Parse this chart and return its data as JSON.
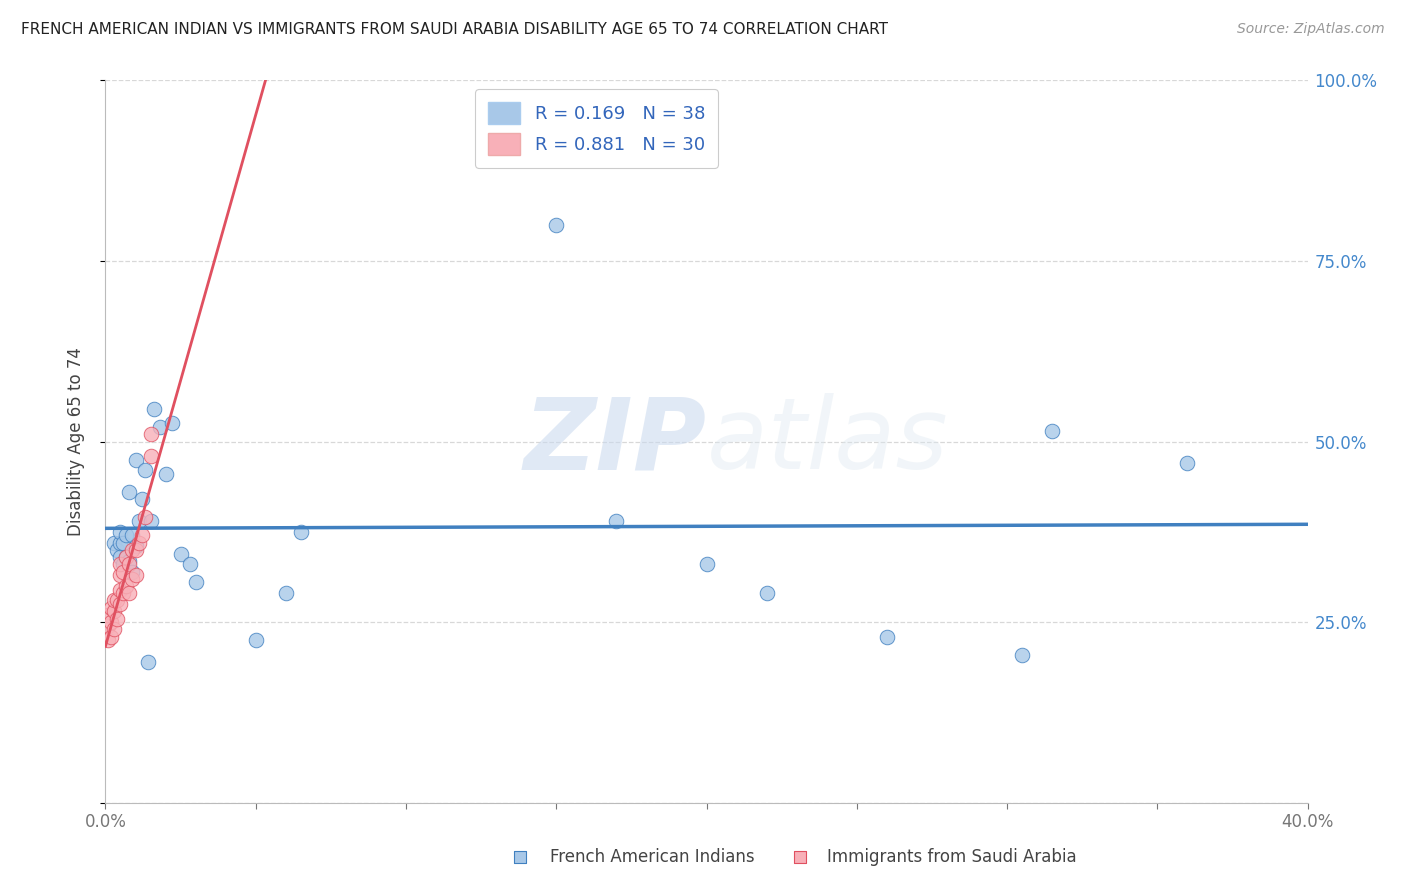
{
  "title": "FRENCH AMERICAN INDIAN VS IMMIGRANTS FROM SAUDI ARABIA DISABILITY AGE 65 TO 74 CORRELATION CHART",
  "source": "Source: ZipAtlas.com",
  "ylabel": "Disability Age 65 to 74",
  "xlim": [
    0.0,
    0.4
  ],
  "ylim": [
    0.0,
    1.0
  ],
  "blue_R": 0.169,
  "blue_N": 38,
  "pink_R": 0.881,
  "pink_N": 30,
  "blue_color": "#a8c8e8",
  "pink_color": "#f8b0b8",
  "blue_line_color": "#4080c0",
  "pink_line_color": "#e05060",
  "grid_color": "#d8d8d8",
  "background_color": "#ffffff",
  "watermark_zip": "ZIP",
  "watermark_atlas": "atlas",
  "legend_label_blue": "French American Indians",
  "legend_label_pink": "Immigrants from Saudi Arabia",
  "blue_x": [
    0.003,
    0.004,
    0.005,
    0.005,
    0.005,
    0.006,
    0.006,
    0.007,
    0.007,
    0.008,
    0.008,
    0.009,
    0.009,
    0.01,
    0.01,
    0.011,
    0.012,
    0.013,
    0.014,
    0.015,
    0.016,
    0.018,
    0.02,
    0.022,
    0.025,
    0.028,
    0.03,
    0.05,
    0.06,
    0.065,
    0.15,
    0.17,
    0.2,
    0.22,
    0.26,
    0.305,
    0.315,
    0.36
  ],
  "blue_y": [
    0.36,
    0.35,
    0.34,
    0.36,
    0.375,
    0.33,
    0.36,
    0.34,
    0.37,
    0.335,
    0.43,
    0.32,
    0.37,
    0.355,
    0.475,
    0.39,
    0.42,
    0.46,
    0.195,
    0.39,
    0.545,
    0.52,
    0.455,
    0.525,
    0.345,
    0.33,
    0.305,
    0.225,
    0.29,
    0.375,
    0.8,
    0.39,
    0.33,
    0.29,
    0.23,
    0.205,
    0.515,
    0.47
  ],
  "pink_x": [
    0.001,
    0.001,
    0.001,
    0.002,
    0.002,
    0.002,
    0.003,
    0.003,
    0.003,
    0.004,
    0.004,
    0.005,
    0.005,
    0.005,
    0.005,
    0.006,
    0.006,
    0.007,
    0.007,
    0.008,
    0.008,
    0.009,
    0.009,
    0.01,
    0.01,
    0.011,
    0.012,
    0.013,
    0.015,
    0.015
  ],
  "pink_y": [
    0.225,
    0.245,
    0.26,
    0.23,
    0.25,
    0.27,
    0.24,
    0.265,
    0.28,
    0.255,
    0.28,
    0.275,
    0.295,
    0.315,
    0.33,
    0.29,
    0.32,
    0.3,
    0.34,
    0.29,
    0.33,
    0.31,
    0.35,
    0.315,
    0.35,
    0.36,
    0.37,
    0.395,
    0.48,
    0.51
  ]
}
